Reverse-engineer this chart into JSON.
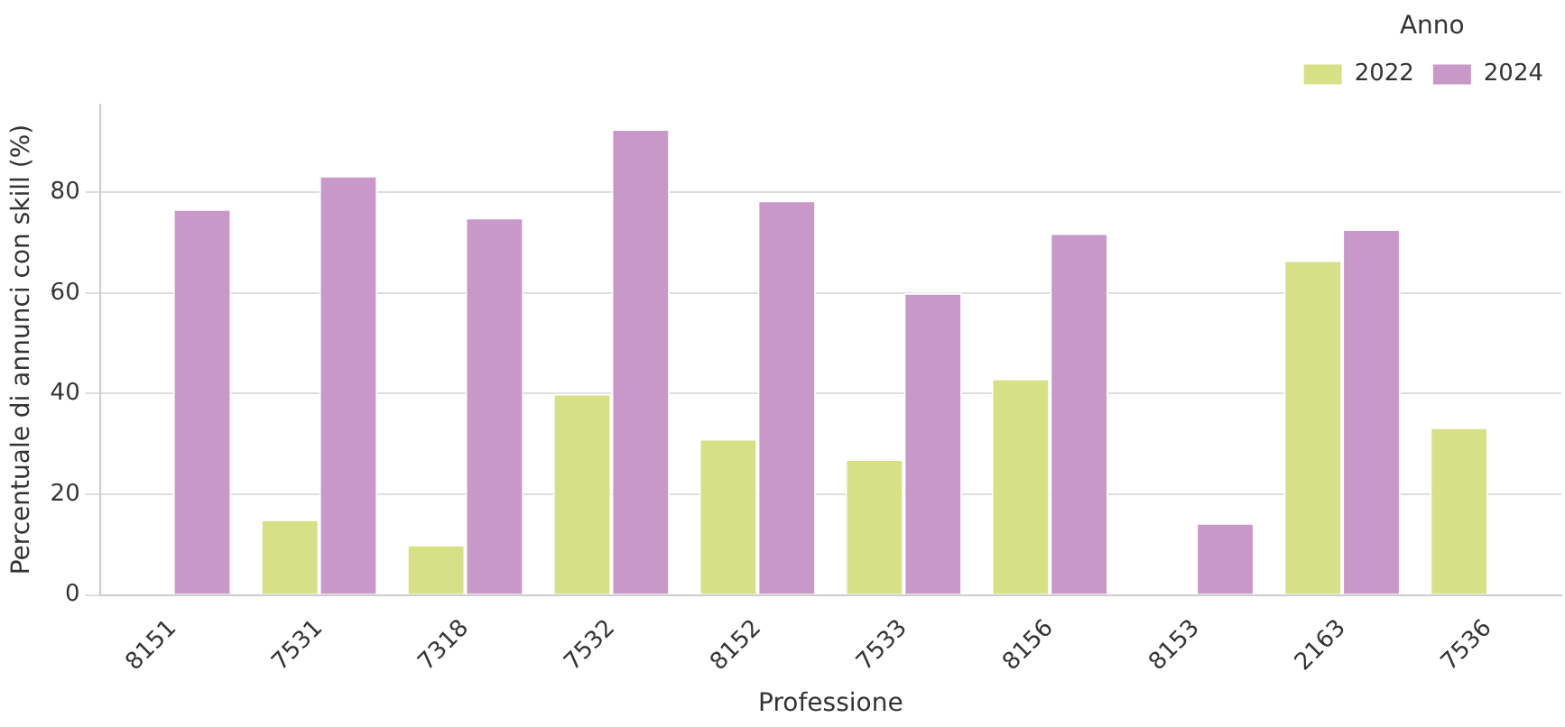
{
  "chart_data": {
    "type": "bar",
    "xlabel": "Professione",
    "ylabel": "Percentuale di annunci con skill (%)",
    "legend_title": "Anno",
    "categories": [
      "8151",
      "7531",
      "7318",
      "7532",
      "8152",
      "7533",
      "8156",
      "8153",
      "2163",
      "7536"
    ],
    "series": [
      {
        "name": "2022",
        "color": "#d6e084",
        "values": [
          null,
          15,
          10,
          40,
          31,
          27,
          43,
          null,
          66.5,
          33.3
        ]
      },
      {
        "name": "2024",
        "color": "#c898c9",
        "values": [
          76.7,
          83.3,
          75,
          92.6,
          78.4,
          60,
          71.9,
          14.3,
          72.7,
          null
        ]
      }
    ],
    "ylim": [
      0,
      97.5
    ],
    "yticks": [
      0,
      20,
      40,
      60,
      80
    ],
    "grid": "y",
    "legend": "top right"
  }
}
